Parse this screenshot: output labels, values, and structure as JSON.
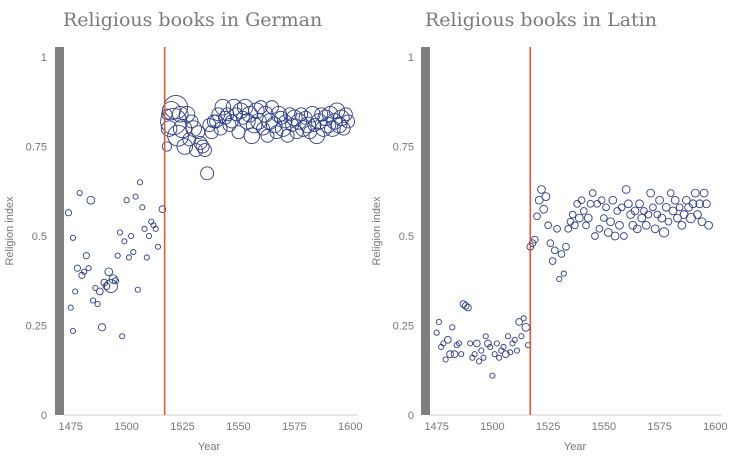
{
  "colors": {
    "points": "#2f3f86",
    "reference_line": "#d9593a",
    "axis_band": "#7f7f7f",
    "text": "#7a7a7a"
  },
  "chart_data": [
    {
      "type": "scatter",
      "title": "Religious books in German",
      "xlabel": "Year",
      "ylabel": "Religion index",
      "xlim": [
        1472,
        1603
      ],
      "ylim": [
        0,
        1
      ],
      "xticks": [
        "1475",
        "1500",
        "1525",
        "1550",
        "1575",
        "1600"
      ],
      "xtick_values": [
        1475,
        1500,
        1525,
        1550,
        1575,
        1600
      ],
      "yticks": [
        "0",
        "0.25",
        "0.5",
        "0.75",
        "1"
      ],
      "ytick_values": [
        0,
        0.25,
        0.5,
        0.75,
        1
      ],
      "reference_x": 1517,
      "size_note": "third value of each point is relative marker size (1 = smallest)",
      "points": [
        [
          1474,
          0.565,
          1.2
        ],
        [
          1475,
          0.3,
          1
        ],
        [
          1476,
          0.235,
          1
        ],
        [
          1476,
          0.495,
          1
        ],
        [
          1477,
          0.345,
          1
        ],
        [
          1478,
          0.41,
          1.2
        ],
        [
          1479,
          0.62,
          1
        ],
        [
          1480,
          0.39,
          1.2
        ],
        [
          1481,
          0.4,
          1
        ],
        [
          1482,
          0.445,
          1.2
        ],
        [
          1483,
          0.41,
          1
        ],
        [
          1484,
          0.6,
          1.5
        ],
        [
          1485,
          0.32,
          1
        ],
        [
          1486,
          0.355,
          1
        ],
        [
          1487,
          0.31,
          1
        ],
        [
          1488,
          0.345,
          1.3
        ],
        [
          1489,
          0.245,
          1.4
        ],
        [
          1490,
          0.37,
          1.3
        ],
        [
          1491,
          0.36,
          1.3
        ],
        [
          1492,
          0.4,
          1.5
        ],
        [
          1493,
          0.36,
          2.5
        ],
        [
          1494,
          0.38,
          1.6
        ],
        [
          1495,
          0.375,
          1.2
        ],
        [
          1496,
          0.445,
          1
        ],
        [
          1497,
          0.51,
          1
        ],
        [
          1498,
          0.22,
          1
        ],
        [
          1499,
          0.485,
          1
        ],
        [
          1500,
          0.6,
          1
        ],
        [
          1501,
          0.44,
          1
        ],
        [
          1502,
          0.5,
          1
        ],
        [
          1503,
          0.455,
          1
        ],
        [
          1504,
          0.61,
          1
        ],
        [
          1505,
          0.35,
          1
        ],
        [
          1506,
          0.65,
          1
        ],
        [
          1507,
          0.58,
          1
        ],
        [
          1508,
          0.52,
          1
        ],
        [
          1509,
          0.44,
          1
        ],
        [
          1510,
          0.5,
          1
        ],
        [
          1511,
          0.54,
          1
        ],
        [
          1512,
          0.53,
          1
        ],
        [
          1513,
          0.52,
          1
        ],
        [
          1514,
          0.47,
          1
        ],
        [
          1516,
          0.575,
          1.3
        ],
        [
          1518,
          0.75,
          1.8
        ],
        [
          1518,
          0.84,
          2
        ],
        [
          1519,
          0.8,
          3
        ],
        [
          1520,
          0.85,
          3.5
        ],
        [
          1521,
          0.82,
          5
        ],
        [
          1522,
          0.86,
          4.5
        ],
        [
          1523,
          0.78,
          4
        ],
        [
          1524,
          0.84,
          3
        ],
        [
          1525,
          0.8,
          3.5
        ],
        [
          1526,
          0.75,
          3
        ],
        [
          1527,
          0.84,
          3
        ],
        [
          1528,
          0.77,
          2.5
        ],
        [
          1529,
          0.82,
          2.5
        ],
        [
          1530,
          0.8,
          3
        ],
        [
          1531,
          0.74,
          2.5
        ],
        [
          1532,
          0.79,
          2.5
        ],
        [
          1533,
          0.76,
          2.5
        ],
        [
          1534,
          0.75,
          2.5
        ],
        [
          1535,
          0.74,
          2.5
        ],
        [
          1536,
          0.675,
          2.5
        ],
        [
          1537,
          0.81,
          2.5
        ],
        [
          1538,
          0.79,
          2.5
        ],
        [
          1539,
          0.82,
          2.5
        ],
        [
          1540,
          0.82,
          2.5
        ],
        [
          1541,
          0.84,
          2.5
        ],
        [
          1542,
          0.8,
          2.5
        ],
        [
          1543,
          0.86,
          3
        ],
        [
          1544,
          0.83,
          2.5
        ],
        [
          1545,
          0.84,
          2.5
        ],
        [
          1546,
          0.81,
          2.5
        ],
        [
          1547,
          0.82,
          2.5
        ],
        [
          1548,
          0.86,
          3
        ],
        [
          1549,
          0.84,
          2.5
        ],
        [
          1550,
          0.79,
          2.5
        ],
        [
          1551,
          0.85,
          3
        ],
        [
          1552,
          0.83,
          2.5
        ],
        [
          1553,
          0.86,
          3
        ],
        [
          1554,
          0.82,
          3
        ],
        [
          1555,
          0.84,
          3
        ],
        [
          1556,
          0.78,
          3
        ],
        [
          1557,
          0.81,
          3
        ],
        [
          1558,
          0.85,
          3
        ],
        [
          1559,
          0.82,
          3
        ],
        [
          1560,
          0.86,
          2.5
        ],
        [
          1561,
          0.8,
          2.5
        ],
        [
          1562,
          0.84,
          3
        ],
        [
          1563,
          0.78,
          2.5
        ],
        [
          1564,
          0.82,
          3
        ],
        [
          1565,
          0.86,
          2.5
        ],
        [
          1566,
          0.81,
          3
        ],
        [
          1567,
          0.79,
          2.5
        ],
        [
          1568,
          0.84,
          3
        ],
        [
          1569,
          0.83,
          2.5
        ],
        [
          1570,
          0.8,
          3
        ],
        [
          1571,
          0.82,
          2.5
        ],
        [
          1572,
          0.78,
          2.5
        ],
        [
          1573,
          0.84,
          2.5
        ],
        [
          1574,
          0.81,
          2.5
        ],
        [
          1575,
          0.83,
          3
        ],
        [
          1576,
          0.79,
          2.5
        ],
        [
          1577,
          0.82,
          3
        ],
        [
          1578,
          0.84,
          2.5
        ],
        [
          1579,
          0.8,
          3
        ],
        [
          1580,
          0.83,
          2.5
        ],
        [
          1581,
          0.81,
          3
        ],
        [
          1582,
          0.79,
          2.5
        ],
        [
          1583,
          0.84,
          3
        ],
        [
          1584,
          0.81,
          2.5
        ],
        [
          1585,
          0.78,
          3
        ],
        [
          1586,
          0.82,
          3
        ],
        [
          1587,
          0.84,
          2.5
        ],
        [
          1588,
          0.8,
          3
        ],
        [
          1589,
          0.83,
          3
        ],
        [
          1590,
          0.81,
          3
        ],
        [
          1591,
          0.84,
          3
        ],
        [
          1592,
          0.8,
          3
        ],
        [
          1593,
          0.82,
          3
        ],
        [
          1594,
          0.85,
          3
        ],
        [
          1595,
          0.81,
          3
        ],
        [
          1596,
          0.83,
          3
        ],
        [
          1597,
          0.8,
          2.5
        ],
        [
          1598,
          0.84,
          2.5
        ],
        [
          1599,
          0.82,
          2.5
        ]
      ]
    },
    {
      "type": "scatter",
      "title": "Religious books in Latin",
      "xlabel": "Year",
      "ylabel": "Religion index",
      "xlim": [
        1472,
        1603
      ],
      "ylim": [
        0,
        1
      ],
      "xticks": [
        "1475",
        "1500",
        "1525",
        "1550",
        "1575",
        "1600"
      ],
      "xtick_values": [
        1475,
        1500,
        1525,
        1550,
        1575,
        1600
      ],
      "yticks": [
        "0",
        "0.25",
        "0.5",
        "0.75",
        "1"
      ],
      "ytick_values": [
        0,
        0.25,
        0.5,
        0.75,
        1
      ],
      "reference_x": 1517,
      "size_note": "third value of each point is relative marker size (1 = smallest)",
      "points": [
        [
          1475,
          0.23,
          1
        ],
        [
          1476,
          0.26,
          1
        ],
        [
          1477,
          0.19,
          1
        ],
        [
          1478,
          0.2,
          1
        ],
        [
          1479,
          0.155,
          1
        ],
        [
          1480,
          0.21,
          1.3
        ],
        [
          1481,
          0.17,
          1.3
        ],
        [
          1482,
          0.245,
          1
        ],
        [
          1483,
          0.17,
          1.3
        ],
        [
          1484,
          0.195,
          1
        ],
        [
          1485,
          0.2,
          1
        ],
        [
          1486,
          0.17,
          1
        ],
        [
          1487,
          0.31,
          1.3
        ],
        [
          1488,
          0.305,
          1.3
        ],
        [
          1489,
          0.3,
          1.3
        ],
        [
          1490,
          0.2,
          1
        ],
        [
          1491,
          0.16,
          1
        ],
        [
          1492,
          0.17,
          1
        ],
        [
          1493,
          0.2,
          1.3
        ],
        [
          1494,
          0.15,
          1
        ],
        [
          1495,
          0.18,
          1
        ],
        [
          1496,
          0.16,
          1
        ],
        [
          1497,
          0.22,
          1
        ],
        [
          1498,
          0.2,
          1.3
        ],
        [
          1499,
          0.19,
          1
        ],
        [
          1500,
          0.11,
          1
        ],
        [
          1501,
          0.17,
          1
        ],
        [
          1502,
          0.2,
          1
        ],
        [
          1503,
          0.16,
          1
        ],
        [
          1504,
          0.18,
          1
        ],
        [
          1505,
          0.19,
          1
        ],
        [
          1506,
          0.17,
          1.3
        ],
        [
          1507,
          0.22,
          1
        ],
        [
          1508,
          0.175,
          1
        ],
        [
          1509,
          0.2,
          1
        ],
        [
          1510,
          0.21,
          1
        ],
        [
          1511,
          0.18,
          1
        ],
        [
          1512,
          0.26,
          1.3
        ],
        [
          1513,
          0.22,
          1
        ],
        [
          1514,
          0.27,
          1
        ],
        [
          1515,
          0.245,
          1.5
        ],
        [
          1516,
          0.195,
          1
        ],
        [
          1517,
          0.47,
          1.3
        ],
        [
          1518,
          0.48,
          1.3
        ],
        [
          1519,
          0.49,
          1.3
        ],
        [
          1520,
          0.555,
          1.3
        ],
        [
          1521,
          0.6,
          1.5
        ],
        [
          1522,
          0.63,
          1.5
        ],
        [
          1523,
          0.575,
          1.5
        ],
        [
          1524,
          0.61,
          1.5
        ],
        [
          1525,
          0.53,
          1.3
        ],
        [
          1526,
          0.48,
          1.3
        ],
        [
          1527,
          0.43,
          1.3
        ],
        [
          1528,
          0.46,
          1.3
        ],
        [
          1529,
          0.52,
          1.3
        ],
        [
          1530,
          0.38,
          1
        ],
        [
          1531,
          0.45,
          1.3
        ],
        [
          1532,
          0.395,
          1
        ],
        [
          1533,
          0.47,
          1.3
        ],
        [
          1534,
          0.52,
          1.3
        ],
        [
          1535,
          0.54,
          1.3
        ],
        [
          1536,
          0.56,
          1.3
        ],
        [
          1537,
          0.53,
          1.3
        ],
        [
          1538,
          0.59,
          1.3
        ],
        [
          1539,
          0.55,
          1.5
        ],
        [
          1540,
          0.6,
          1.3
        ],
        [
          1541,
          0.57,
          1.3
        ],
        [
          1542,
          0.53,
          1.3
        ],
        [
          1543,
          0.55,
          1.5
        ],
        [
          1544,
          0.59,
          1.3
        ],
        [
          1545,
          0.62,
          1.3
        ],
        [
          1546,
          0.5,
          1.3
        ],
        [
          1547,
          0.59,
          1.3
        ],
        [
          1548,
          0.52,
          1.3
        ],
        [
          1549,
          0.6,
          1.3
        ],
        [
          1550,
          0.55,
          1.3
        ],
        [
          1551,
          0.58,
          1.3
        ],
        [
          1552,
          0.51,
          1.5
        ],
        [
          1553,
          0.54,
          1.5
        ],
        [
          1554,
          0.6,
          1.5
        ],
        [
          1555,
          0.5,
          1.5
        ],
        [
          1556,
          0.57,
          1.3
        ],
        [
          1557,
          0.53,
          1.5
        ],
        [
          1558,
          0.58,
          1.3
        ],
        [
          1559,
          0.5,
          1.3
        ],
        [
          1560,
          0.63,
          1.5
        ],
        [
          1561,
          0.59,
          1.5
        ],
        [
          1562,
          0.56,
          1.5
        ],
        [
          1563,
          0.53,
          1.5
        ],
        [
          1564,
          0.57,
          1.5
        ],
        [
          1565,
          0.52,
          1.5
        ],
        [
          1566,
          0.59,
          1.5
        ],
        [
          1567,
          0.55,
          1.5
        ],
        [
          1568,
          0.57,
          1.3
        ],
        [
          1569,
          0.53,
          1.5
        ],
        [
          1570,
          0.56,
          1.3
        ],
        [
          1571,
          0.62,
          1.5
        ],
        [
          1572,
          0.58,
          1.3
        ],
        [
          1573,
          0.52,
          1.5
        ],
        [
          1574,
          0.56,
          1.3
        ],
        [
          1575,
          0.6,
          1.5
        ],
        [
          1576,
          0.55,
          1.5
        ],
        [
          1577,
          0.51,
          1.8
        ],
        [
          1578,
          0.58,
          1.5
        ],
        [
          1579,
          0.54,
          1.3
        ],
        [
          1580,
          0.62,
          1.3
        ],
        [
          1581,
          0.57,
          1.5
        ],
        [
          1582,
          0.6,
          1.5
        ],
        [
          1583,
          0.55,
          1.5
        ],
        [
          1584,
          0.58,
          1.3
        ],
        [
          1585,
          0.53,
          1.5
        ],
        [
          1586,
          0.56,
          1.5
        ],
        [
          1587,
          0.6,
          1.5
        ],
        [
          1588,
          0.58,
          1.5
        ],
        [
          1589,
          0.55,
          1.8
        ],
        [
          1590,
          0.59,
          1.5
        ],
        [
          1591,
          0.62,
          1.5
        ],
        [
          1592,
          0.56,
          1.5
        ],
        [
          1593,
          0.59,
          1.5
        ],
        [
          1594,
          0.54,
          1.5
        ],
        [
          1595,
          0.62,
          1.5
        ],
        [
          1596,
          0.59,
          1.5
        ],
        [
          1597,
          0.53,
          1.5
        ]
      ]
    }
  ]
}
